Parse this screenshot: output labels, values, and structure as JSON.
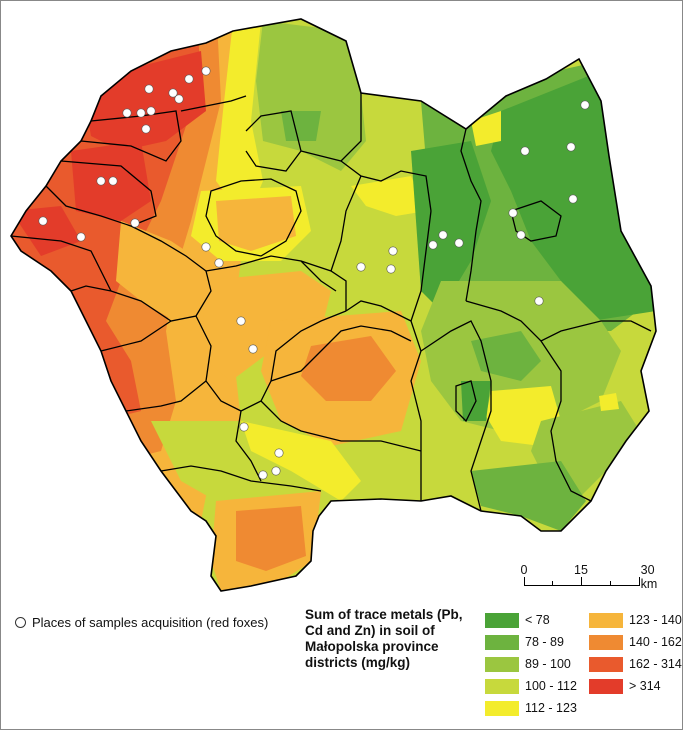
{
  "map": {
    "sample_points_label": "Places of samples acquisition (red foxes)",
    "legend_title": "Sum of trace metals (Pb, Cd and Zn) in soil of Małopolska province districts (mg/kg)",
    "legend": [
      {
        "label": "< 78",
        "color": "#4aa337"
      },
      {
        "label": "78 - 89",
        "color": "#6db33f"
      },
      {
        "label": "89 - 100",
        "color": "#9bc640"
      },
      {
        "label": "100 - 112",
        "color": "#c7d93c"
      },
      {
        "label": "112 - 123",
        "color": "#f3ec2c"
      },
      {
        "label": "123 - 140",
        "color": "#f6b53b"
      },
      {
        "label": "140 - 162",
        "color": "#ef8a32"
      },
      {
        "label": "162 - 314",
        "color": "#e95a2d"
      },
      {
        "label": "> 314",
        "color": "#e33c2a"
      }
    ],
    "scale": {
      "labels": [
        "0",
        "15",
        "30 km"
      ]
    },
    "sample_point_color": "#ffffff"
  }
}
